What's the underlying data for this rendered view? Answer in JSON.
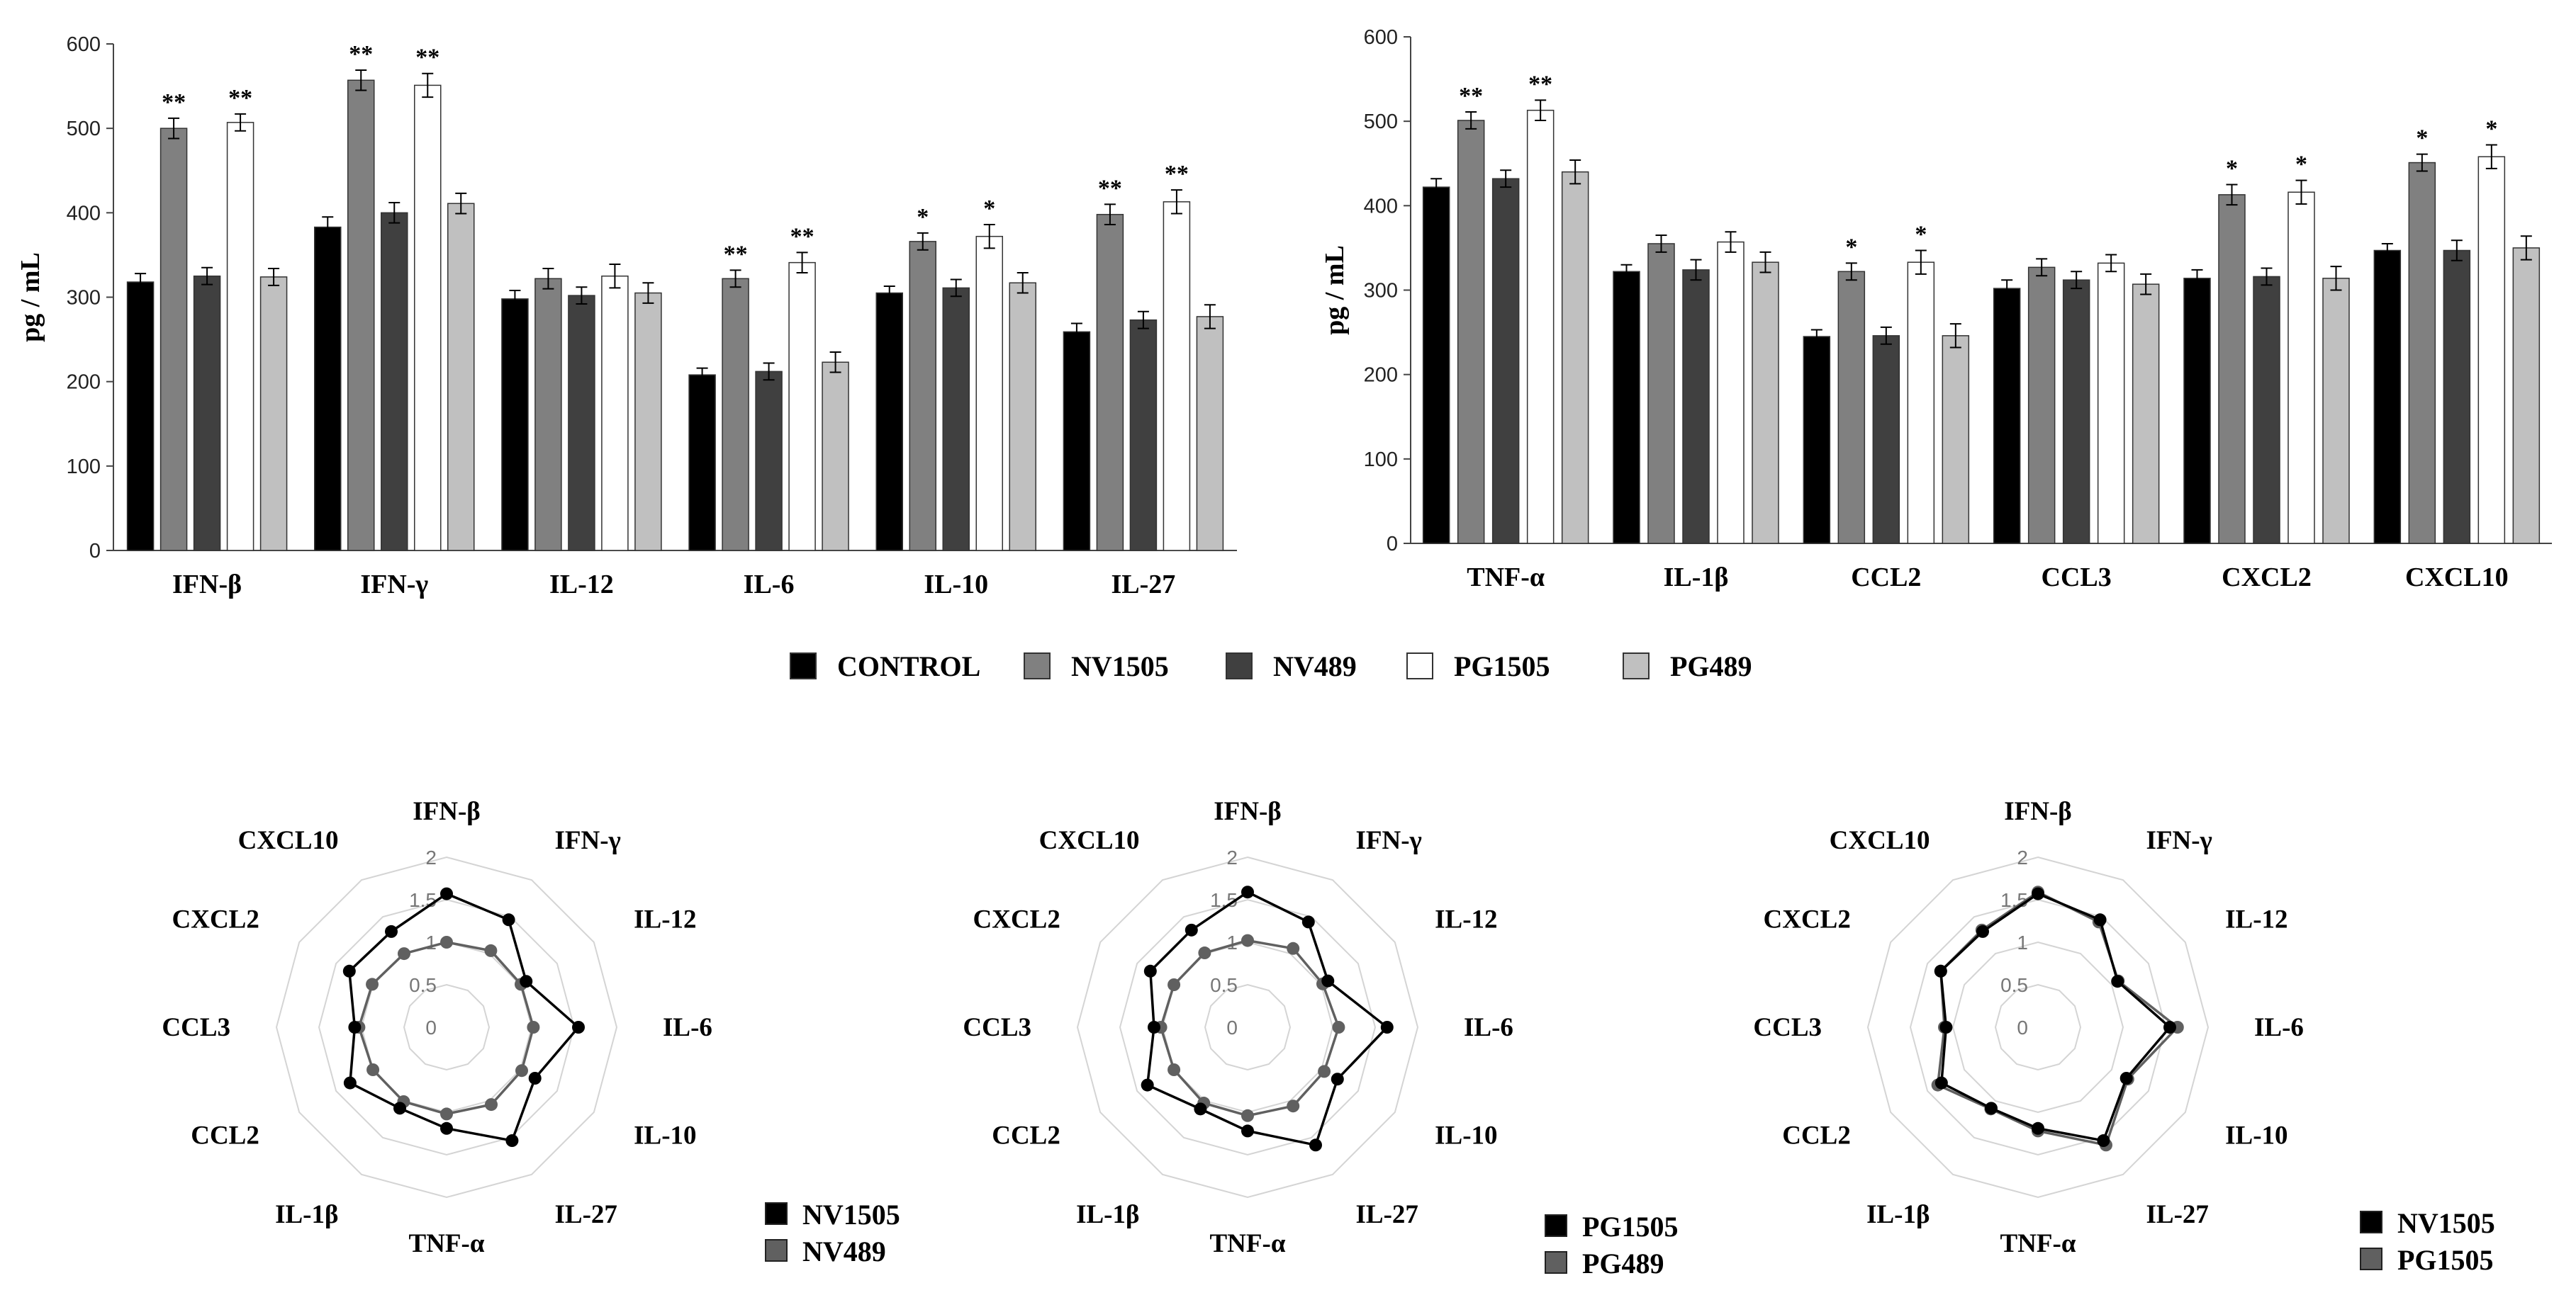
{
  "chart_data": [
    {
      "type": "bar",
      "panel": "top-left",
      "ylabel": "pg / mL",
      "ylim": [
        0,
        600
      ],
      "yticks": [
        0,
        100,
        200,
        300,
        400,
        500,
        600
      ],
      "categories": [
        "IFN-β",
        "IFN-γ",
        "IL-12",
        "IL-6",
        "IL-10",
        "IL-27"
      ],
      "series": [
        {
          "name": "CONTROL",
          "color": "#000000",
          "values": [
            318,
            383,
            298,
            208,
            305,
            259
          ],
          "errors": [
            10,
            12,
            10,
            8,
            8,
            10
          ],
          "sig": [
            "",
            "",
            "",
            "",
            "",
            ""
          ]
        },
        {
          "name": "NV1505",
          "color": "#808080",
          "values": [
            500,
            557,
            322,
            322,
            366,
            398
          ],
          "errors": [
            12,
            12,
            12,
            10,
            10,
            12
          ],
          "sig": [
            "**",
            "**",
            "",
            "**",
            "*",
            "**"
          ]
        },
        {
          "name": "NV489",
          "color": "#404040",
          "values": [
            325,
            400,
            302,
            212,
            311,
            273
          ],
          "errors": [
            10,
            12,
            10,
            10,
            10,
            10
          ],
          "sig": [
            "",
            "",
            "",
            "",
            "",
            ""
          ]
        },
        {
          "name": "PG1505",
          "color": "#ffffff",
          "values": [
            507,
            551,
            325,
            341,
            372,
            413
          ],
          "errors": [
            10,
            14,
            14,
            12,
            14,
            14
          ],
          "sig": [
            "**",
            "**",
            "",
            "**",
            "*",
            "**"
          ]
        },
        {
          "name": "PG489",
          "color": "#c0c0c0",
          "values": [
            324,
            411,
            305,
            223,
            317,
            277
          ],
          "errors": [
            10,
            12,
            12,
            12,
            12,
            14
          ],
          "sig": [
            "",
            "",
            "",
            "",
            "",
            ""
          ]
        }
      ]
    },
    {
      "type": "bar",
      "panel": "top-right",
      "ylabel": "pg / mL",
      "ylim": [
        0,
        600
      ],
      "yticks": [
        0,
        100,
        200,
        300,
        400,
        500,
        600
      ],
      "categories": [
        "TNF-α",
        "IL-1β",
        "CCL2",
        "CCL3",
        "CXCL2",
        "CXCL10"
      ],
      "series": [
        {
          "name": "CONTROL",
          "color": "#000000",
          "values": [
            422,
            322,
            245,
            302,
            314,
            347
          ],
          "errors": [
            10,
            8,
            8,
            10,
            10,
            8
          ],
          "sig": [
            "",
            "",
            "",
            "",
            "",
            ""
          ]
        },
        {
          "name": "NV1505",
          "color": "#808080",
          "values": [
            501,
            355,
            322,
            327,
            413,
            451
          ],
          "errors": [
            10,
            10,
            10,
            10,
            12,
            10
          ],
          "sig": [
            "**",
            "",
            "*",
            "",
            "*",
            "*"
          ]
        },
        {
          "name": "NV489",
          "color": "#404040",
          "values": [
            432,
            324,
            246,
            312,
            316,
            347
          ],
          "errors": [
            10,
            12,
            10,
            10,
            10,
            12
          ],
          "sig": [
            "",
            "",
            "",
            "",
            "",
            ""
          ]
        },
        {
          "name": "PG1505",
          "color": "#ffffff",
          "values": [
            513,
            357,
            333,
            332,
            416,
            458
          ],
          "errors": [
            12,
            12,
            14,
            10,
            14,
            14
          ],
          "sig": [
            "**",
            "",
            "*",
            "",
            "*",
            "*"
          ]
        },
        {
          "name": "PG489",
          "color": "#c0c0c0",
          "values": [
            440,
            333,
            246,
            307,
            314,
            350
          ],
          "errors": [
            14,
            12,
            14,
            12,
            14,
            14
          ],
          "sig": [
            "",
            "",
            "",
            "",
            "",
            ""
          ]
        }
      ]
    },
    {
      "type": "radar",
      "panel": "bottom-left",
      "axes": [
        "IFN-β",
        "IFN-γ",
        "IL-12",
        "IL-6",
        "IL-10",
        "IL-27",
        "TNF-α",
        "IL-1β",
        "CCL2",
        "CCL3",
        "CXCL2",
        "CXCL10"
      ],
      "rlim": [
        0,
        2
      ],
      "rticks": [
        "0",
        "0.5",
        "1",
        "1.5",
        "2"
      ],
      "series": [
        {
          "name": "NV1505",
          "color": "#000000",
          "values": [
            1.57,
            1.46,
            1.08,
            1.55,
            1.2,
            1.54,
            1.19,
            1.1,
            1.31,
            1.08,
            1.32,
            1.3
          ]
        },
        {
          "name": "NV489",
          "color": "#606060",
          "values": [
            1.0,
            1.04,
            1.01,
            1.02,
            1.02,
            1.05,
            1.02,
            1.01,
            1.0,
            1.03,
            1.01,
            1.0
          ]
        }
      ]
    },
    {
      "type": "radar",
      "panel": "bottom-middle",
      "axes": [
        "IFN-β",
        "IFN-γ",
        "IL-12",
        "IL-6",
        "IL-10",
        "IL-27",
        "TNF-α",
        "IL-1β",
        "CCL2",
        "CCL3",
        "CXCL2",
        "CXCL10"
      ],
      "rlim": [
        0,
        2
      ],
      "rticks": [
        "0",
        "0.5",
        "1",
        "1.5",
        "2"
      ],
      "series": [
        {
          "name": "PG1505",
          "color": "#000000",
          "values": [
            1.59,
            1.43,
            1.09,
            1.64,
            1.22,
            1.6,
            1.22,
            1.11,
            1.36,
            1.1,
            1.32,
            1.32
          ]
        },
        {
          "name": "PG489",
          "color": "#606060",
          "values": [
            1.02,
            1.07,
            1.02,
            1.07,
            1.04,
            1.07,
            1.04,
            1.03,
            1.0,
            1.02,
            1.0,
            1.01
          ]
        }
      ]
    },
    {
      "type": "radar",
      "panel": "bottom-right",
      "axes": [
        "IFN-β",
        "IFN-γ",
        "IL-12",
        "IL-6",
        "IL-10",
        "IL-27",
        "TNF-α",
        "IL-1β",
        "CCL2",
        "CCL3",
        "CXCL2",
        "CXCL10"
      ],
      "rlim": [
        0,
        2
      ],
      "rticks": [
        "0",
        "0.5",
        "1",
        "1.5",
        "2"
      ],
      "series": [
        {
          "name": "NV1505",
          "color": "#000000",
          "values": [
            1.57,
            1.46,
            1.08,
            1.55,
            1.2,
            1.54,
            1.19,
            1.1,
            1.31,
            1.08,
            1.32,
            1.3
          ]
        },
        {
          "name": "PG1505",
          "color": "#606060",
          "values": [
            1.59,
            1.43,
            1.09,
            1.64,
            1.22,
            1.6,
            1.22,
            1.11,
            1.36,
            1.1,
            1.32,
            1.32
          ]
        }
      ]
    }
  ],
  "legend": [
    {
      "label": "CONTROL",
      "color": "#000000"
    },
    {
      "label": "NV1505",
      "color": "#808080"
    },
    {
      "label": "NV489",
      "color": "#404040"
    },
    {
      "label": "PG1505",
      "color": "#ffffff"
    },
    {
      "label": "PG489",
      "color": "#c0c0c0"
    }
  ]
}
